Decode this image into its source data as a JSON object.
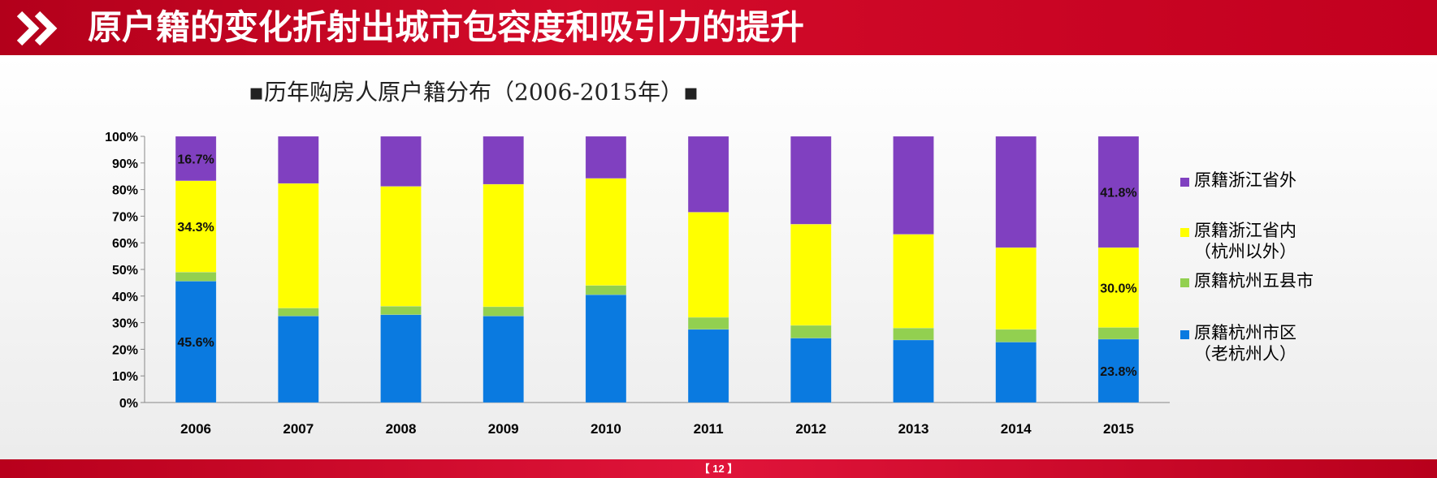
{
  "header": {
    "title": "原户籍的变化折射出城市包容度和吸引力的提升",
    "icon": "double-chevron-right-icon"
  },
  "footer": {
    "page_number": "【 12 】"
  },
  "colors": {
    "header_red": "#c8001f",
    "series": {
      "杭州市区": "#0a7ae0",
      "五县市": "#92d050",
      "浙江省内": "#ffff00",
      "浙江省外": "#8040c0"
    }
  },
  "chart_data": {
    "type": "bar",
    "stacked": true,
    "title_text": "历年购房人原户籍分布（2006-2015年）",
    "title_marker": "▪",
    "categories": [
      "2006",
      "2007",
      "2008",
      "2009",
      "2010",
      "2011",
      "2012",
      "2013",
      "2014",
      "2015"
    ],
    "series": [
      {
        "key": "杭州市区",
        "name": "原籍杭州市区",
        "name_line2": "（老杭州人）",
        "values": [
          45.6,
          32.5,
          33.0,
          32.5,
          40.5,
          27.5,
          24.2,
          23.5,
          22.7,
          23.8
        ]
      },
      {
        "key": "五县市",
        "name": "原籍杭州五县市",
        "name_line2": "",
        "values": [
          3.4,
          3.0,
          3.2,
          3.5,
          3.5,
          4.5,
          4.8,
          4.5,
          4.8,
          4.4
        ]
      },
      {
        "key": "浙江省内",
        "name": "原籍浙江省内",
        "name_line2": "（杭州以外）",
        "values": [
          34.3,
          46.8,
          45.0,
          46.0,
          40.2,
          39.5,
          38.0,
          35.2,
          30.7,
          30.0
        ]
      },
      {
        "key": "浙江省外",
        "name": "原籍浙江省外",
        "name_line2": "",
        "values": [
          16.7,
          17.7,
          18.8,
          18.0,
          15.8,
          28.5,
          33.0,
          36.8,
          41.8,
          41.8
        ]
      }
    ],
    "data_labels": [
      {
        "series": 0,
        "category": 0,
        "text": "45.6%"
      },
      {
        "series": 2,
        "category": 0,
        "text": "34.3%"
      },
      {
        "series": 3,
        "category": 0,
        "text": "16.7%"
      },
      {
        "series": 0,
        "category": 9,
        "text": "23.8%"
      },
      {
        "series": 2,
        "category": 9,
        "text": "30.0%"
      },
      {
        "series": 3,
        "category": 9,
        "text": "41.8%"
      }
    ],
    "y_ticks": [
      "0%",
      "10%",
      "20%",
      "30%",
      "40%",
      "50%",
      "60%",
      "70%",
      "80%",
      "90%",
      "100%"
    ],
    "ylim": [
      0,
      100
    ],
    "xlabel": "",
    "ylabel": "",
    "legend_position": "right",
    "legend_order": [
      3,
      2,
      1,
      0
    ]
  }
}
